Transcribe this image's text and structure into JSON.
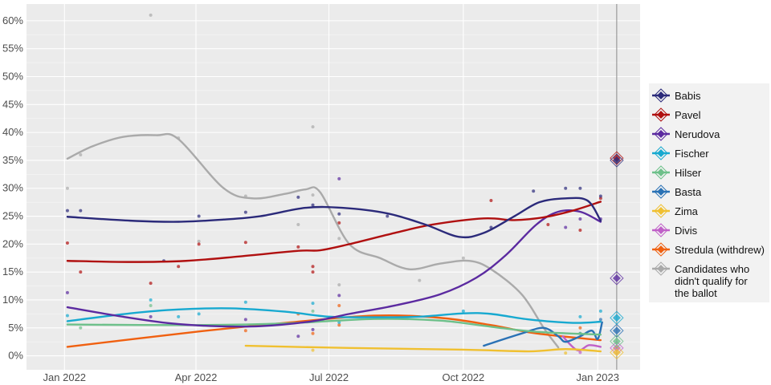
{
  "chart_data": {
    "type": "line",
    "title": "",
    "xlabel": "",
    "ylabel": "",
    "xlim": [
      "2021-12-06",
      "2023-01-30"
    ],
    "ylim": [
      -2.5,
      63
    ],
    "y_ticks": [
      "0%",
      "5%",
      "10%",
      "15%",
      "20%",
      "25%",
      "30%",
      "35%",
      "40%",
      "45%",
      "50%",
      "55%",
      "60%"
    ],
    "y_tick_values": [
      0,
      5,
      10,
      15,
      20,
      25,
      30,
      35,
      40,
      45,
      50,
      55,
      60
    ],
    "x_ticks": [
      {
        "label": "Jan 2022",
        "date": "2022-01-01"
      },
      {
        "label": "Apr 2022",
        "date": "2022-04-01"
      },
      {
        "label": "Jul 2022",
        "date": "2022-07-01"
      },
      {
        "label": "Oct 2022",
        "date": "2022-10-01"
      },
      {
        "label": "Jan 2023",
        "date": "2023-01-01"
      }
    ],
    "grid": true,
    "legend_placement": "right",
    "election_date": "2023-01-14",
    "series": [
      {
        "name": "Babis",
        "color": "#2b2a7a",
        "result": 35.0,
        "trend": [
          [
            "2022-01-03",
            24.9
          ],
          [
            "2022-02-15",
            24.2
          ],
          [
            "2022-03-20",
            24.0
          ],
          [
            "2022-04-20",
            24.4
          ],
          [
            "2022-05-15",
            25.0
          ],
          [
            "2022-06-15",
            26.5
          ],
          [
            "2022-07-10",
            26.5
          ],
          [
            "2022-08-10",
            25.5
          ],
          [
            "2022-09-05",
            23.5
          ],
          [
            "2022-09-28",
            21.3
          ],
          [
            "2022-10-15",
            22.0
          ],
          [
            "2022-11-05",
            25.0
          ],
          [
            "2022-11-22",
            27.5
          ],
          [
            "2022-12-10",
            28.2
          ],
          [
            "2022-12-25",
            27.8
          ],
          [
            "2023-01-03",
            24.2
          ]
        ],
        "polls": [
          [
            "2022-01-03",
            26
          ],
          [
            "2022-01-12",
            26
          ],
          [
            "2022-03-10",
            17
          ],
          [
            "2022-04-03",
            25
          ],
          [
            "2022-05-05",
            25.7
          ],
          [
            "2022-06-10",
            28.4
          ],
          [
            "2022-06-20",
            27
          ],
          [
            "2022-07-08",
            25.4
          ],
          [
            "2022-08-10",
            25
          ],
          [
            "2022-10-20",
            23
          ],
          [
            "2022-11-18",
            29.5
          ],
          [
            "2022-12-10",
            30
          ],
          [
            "2022-12-20",
            30
          ],
          [
            "2023-01-03",
            28.6
          ]
        ]
      },
      {
        "name": "Pavel",
        "color": "#b01010",
        "result": 35.4,
        "trend": [
          [
            "2022-01-03",
            17.0
          ],
          [
            "2022-02-15",
            16.8
          ],
          [
            "2022-03-25",
            17.0
          ],
          [
            "2022-05-01",
            17.8
          ],
          [
            "2022-06-10",
            18.8
          ],
          [
            "2022-06-25",
            18.9
          ],
          [
            "2022-07-15",
            20.0
          ],
          [
            "2022-08-15",
            22.0
          ],
          [
            "2022-09-10",
            23.5
          ],
          [
            "2022-10-15",
            24.6
          ],
          [
            "2022-11-05",
            24.3
          ],
          [
            "2022-11-25",
            24.8
          ],
          [
            "2022-12-15",
            26.0
          ],
          [
            "2023-01-03",
            27.6
          ]
        ],
        "polls": [
          [
            "2022-01-03",
            20.2
          ],
          [
            "2022-01-12",
            15
          ],
          [
            "2022-03-01",
            13
          ],
          [
            "2022-03-20",
            16
          ],
          [
            "2022-04-03",
            20
          ],
          [
            "2022-05-05",
            20.3
          ],
          [
            "2022-06-10",
            19.5
          ],
          [
            "2022-06-20",
            16
          ],
          [
            "2022-06-20",
            15
          ],
          [
            "2022-07-08",
            23.8
          ],
          [
            "2022-10-20",
            27.8
          ],
          [
            "2022-11-28",
            23.5
          ],
          [
            "2022-12-20",
            22.5
          ],
          [
            "2023-01-03",
            28.2
          ]
        ]
      },
      {
        "name": "Nerudova",
        "color": "#5b2aa0",
        "result": 13.9,
        "trend": [
          [
            "2022-01-03",
            8.7
          ],
          [
            "2022-02-10",
            7.0
          ],
          [
            "2022-03-15",
            5.8
          ],
          [
            "2022-04-15",
            5.3
          ],
          [
            "2022-05-15",
            5.3
          ],
          [
            "2022-06-20",
            6.2
          ],
          [
            "2022-07-15",
            7.5
          ],
          [
            "2022-08-15",
            9.0
          ],
          [
            "2022-09-15",
            11.0
          ],
          [
            "2022-10-10",
            14.0
          ],
          [
            "2022-10-30",
            18.0
          ],
          [
            "2022-11-20",
            23.5
          ],
          [
            "2022-12-05",
            25.8
          ],
          [
            "2022-12-20",
            25.8
          ],
          [
            "2023-01-03",
            24.0
          ]
        ],
        "polls": [
          [
            "2022-01-03",
            11.3
          ],
          [
            "2022-03-01",
            7
          ],
          [
            "2022-05-05",
            6.5
          ],
          [
            "2022-06-10",
            3.5
          ],
          [
            "2022-06-20",
            4.7
          ],
          [
            "2022-07-08",
            31.7
          ],
          [
            "2022-07-08",
            10.8
          ],
          [
            "2022-12-10",
            23
          ],
          [
            "2022-12-20",
            24.5
          ],
          [
            "2023-01-03",
            24.5
          ]
        ]
      },
      {
        "name": "Fischer",
        "color": "#17a9d0",
        "result": 6.8,
        "trend": [
          [
            "2022-01-03",
            6.2
          ],
          [
            "2022-02-15",
            7.6
          ],
          [
            "2022-03-20",
            8.3
          ],
          [
            "2022-04-25",
            8.5
          ],
          [
            "2022-06-01",
            7.9
          ],
          [
            "2022-07-01",
            7.0
          ],
          [
            "2022-08-01",
            6.9
          ],
          [
            "2022-09-01",
            7.0
          ],
          [
            "2022-10-01",
            7.6
          ],
          [
            "2022-10-20",
            7.5
          ],
          [
            "2022-11-15",
            6.5
          ],
          [
            "2022-12-15",
            5.9
          ],
          [
            "2023-01-03",
            6.1
          ]
        ],
        "polls": [
          [
            "2022-01-03",
            7.2
          ],
          [
            "2022-03-01",
            10
          ],
          [
            "2022-03-20",
            7
          ],
          [
            "2022-04-03",
            7.5
          ],
          [
            "2022-05-05",
            9.6
          ],
          [
            "2022-06-20",
            9.4
          ],
          [
            "2022-07-08",
            6
          ],
          [
            "2022-10-01",
            8
          ],
          [
            "2022-12-20",
            7
          ],
          [
            "2023-01-03",
            8
          ]
        ]
      },
      {
        "name": "Hilser",
        "color": "#6dc08a",
        "result": 2.6,
        "trend": [
          [
            "2022-01-03",
            5.6
          ],
          [
            "2022-04-01",
            5.5
          ],
          [
            "2022-06-01",
            5.8
          ],
          [
            "2022-08-01",
            6.6
          ],
          [
            "2022-09-15",
            6.3
          ],
          [
            "2022-10-20",
            5.2
          ],
          [
            "2022-11-20",
            4.3
          ],
          [
            "2023-01-03",
            3.8
          ]
        ],
        "polls": [
          [
            "2022-01-12",
            5
          ],
          [
            "2022-03-01",
            9
          ],
          [
            "2022-06-20",
            8
          ],
          [
            "2022-12-20",
            4
          ]
        ]
      },
      {
        "name": "Basta",
        "color": "#2a72b5",
        "result": 4.5,
        "trend": [
          [
            "2022-10-15",
            1.8
          ],
          [
            "2022-11-10",
            4.0
          ],
          [
            "2022-11-25",
            5.0
          ],
          [
            "2022-12-05",
            3.5
          ],
          [
            "2022-12-10",
            2.5
          ],
          [
            "2022-12-20",
            3.5
          ],
          [
            "2022-12-28",
            4.5
          ],
          [
            "2023-01-01",
            3.0
          ],
          [
            "2023-01-04",
            6.0
          ]
        ],
        "polls": [
          [
            "2022-12-20",
            4
          ],
          [
            "2023-01-03",
            6.5
          ]
        ]
      },
      {
        "name": "Zima",
        "color": "#f0c030",
        "result": 0.6,
        "trend": [
          [
            "2022-05-05",
            1.8
          ],
          [
            "2022-07-15",
            1.4
          ],
          [
            "2022-10-01",
            1.1
          ],
          [
            "2022-11-15",
            0.8
          ],
          [
            "2022-12-10",
            1.2
          ],
          [
            "2023-01-03",
            0.8
          ]
        ],
        "polls": [
          [
            "2022-06-20",
            1.0
          ],
          [
            "2022-12-10",
            0.5
          ]
        ]
      },
      {
        "name": "Divis",
        "color": "#c060c8",
        "result": 1.4,
        "trend": [
          [
            "2022-12-08",
            3.5
          ],
          [
            "2022-12-18",
            1.0
          ],
          [
            "2022-12-26",
            1.9
          ],
          [
            "2023-01-03",
            1.6
          ]
        ],
        "polls": [
          [
            "2022-12-20",
            0.6
          ]
        ]
      },
      {
        "name": "Stredula (withdrew)",
        "color": "#f06010",
        "trend": [
          [
            "2022-01-03",
            1.6
          ],
          [
            "2022-04-01",
            4.3
          ],
          [
            "2022-06-01",
            5.9
          ],
          [
            "2022-08-01",
            7.2
          ],
          [
            "2022-09-15",
            6.8
          ],
          [
            "2022-10-20",
            5.5
          ],
          [
            "2022-11-20",
            4.0
          ],
          [
            "2023-01-03",
            2.8
          ]
        ],
        "polls": [
          [
            "2022-05-05",
            4.5
          ],
          [
            "2022-06-10",
            7.5
          ],
          [
            "2022-06-20",
            4
          ],
          [
            "2022-07-08",
            9
          ],
          [
            "2022-07-08",
            5.5
          ],
          [
            "2022-12-20",
            5
          ]
        ]
      },
      {
        "name": "Candidates who didn't qualify for the ballot",
        "color": "#aaaaaa",
        "trend": [
          [
            "2022-01-03",
            35.3
          ],
          [
            "2022-01-20",
            37.5
          ],
          [
            "2022-02-10",
            39.2
          ],
          [
            "2022-03-05",
            39.5
          ],
          [
            "2022-03-20",
            38.8
          ],
          [
            "2022-04-20",
            30.0
          ],
          [
            "2022-05-10",
            28.2
          ],
          [
            "2022-06-01",
            29.0
          ],
          [
            "2022-06-15",
            29.8
          ],
          [
            "2022-06-25",
            29.3
          ],
          [
            "2022-07-15",
            20.0
          ],
          [
            "2022-08-05",
            17.5
          ],
          [
            "2022-08-25",
            15.5
          ],
          [
            "2022-09-15",
            16.5
          ],
          [
            "2022-10-05",
            17.0
          ],
          [
            "2022-10-20",
            15.5
          ],
          [
            "2022-11-10",
            11.0
          ],
          [
            "2022-11-25",
            5.0
          ],
          [
            "2022-12-05",
            1.5
          ]
        ],
        "polls": [
          [
            "2022-01-03",
            30
          ],
          [
            "2022-01-12",
            36
          ],
          [
            "2022-03-01",
            61
          ],
          [
            "2022-03-20",
            39
          ],
          [
            "2022-04-03",
            20.5
          ],
          [
            "2022-05-05",
            28.6
          ],
          [
            "2022-06-10",
            23.5
          ],
          [
            "2022-06-20",
            41
          ],
          [
            "2022-06-20",
            28.8
          ],
          [
            "2022-07-08",
            12.7
          ],
          [
            "2022-07-08",
            21
          ],
          [
            "2022-09-01",
            13.5
          ],
          [
            "2022-10-01",
            17.5
          ]
        ]
      }
    ]
  }
}
